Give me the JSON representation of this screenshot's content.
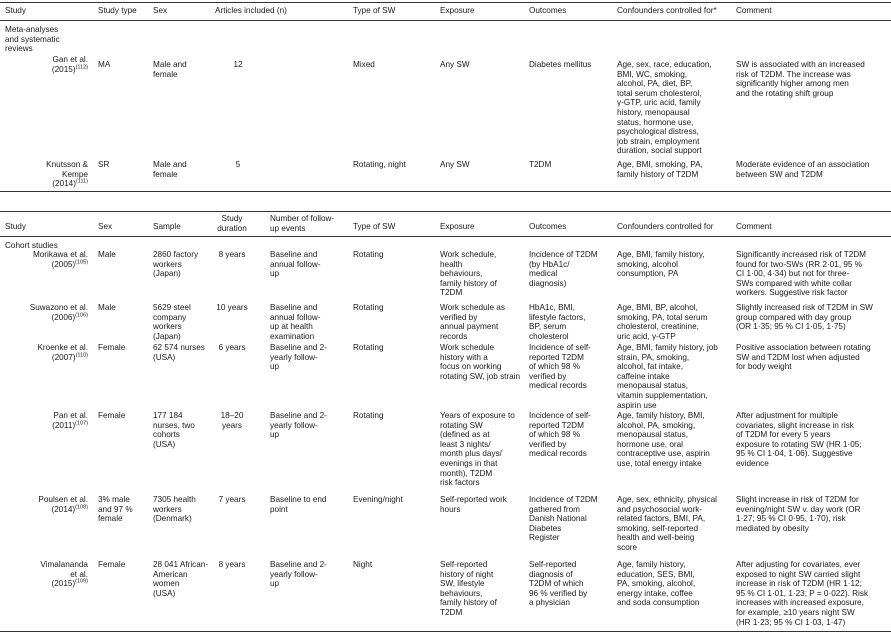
{
  "table1": {
    "headers": [
      "Study",
      "Study type",
      "Sex",
      "Articles included (n)",
      "Type of SW",
      "Exposure",
      "Outcomes",
      "Confounders controlled for*",
      "Comment"
    ],
    "section": "Meta-analyses\nand systematic\nreviews",
    "rows": [
      {
        "study": "Gan et al.\n(2015)",
        "ref": "(112)",
        "type": "MA",
        "sex": "Male and\nfemale",
        "n": "12",
        "sw": "Mixed",
        "exposure": "Any SW",
        "outcomes": "Diabetes mellitus",
        "confounders": "Age, sex, race, education,\nBMI, WC, smoking,\nalcohol, PA, diet, BP,\ntotal serum cholesterol,\nγ-GTP, uric acid, family\nhistory, menopausal\nstatus, hormone use,\npsychological distress,\njob strain, employment\nduration, social support",
        "comment": "SW is associated with an increased\nrisk of T2DM. The increase was\nsignificantly higher among men\nand the rotating shift group"
      },
      {
        "study": "Knutsson &\nKempe\n(2014)",
        "ref": "(111)",
        "type": "SR",
        "sex": "Male and\nfemale",
        "n": "5",
        "sw": "Rotating, night",
        "exposure": "Any SW",
        "outcomes": "T2DM",
        "confounders": "Age, BMI, smoking, PA,\nfamily history of T2DM",
        "comment": "Moderate evidence of an association\nbetween SW and T2DM"
      }
    ]
  },
  "table2": {
    "headers": [
      "Study",
      "Sex",
      "Sample",
      "Study\nduration",
      "Number of follow-\nup events",
      "Type of SW",
      "Exposure",
      "Outcomes",
      "Confounders controlled for",
      "Comment"
    ],
    "section": "Cohort studies",
    "rows": [
      {
        "study": "Morikawa et al.\n(2005)",
        "ref": "(105)",
        "sex": "Male",
        "sample": "2860 factory\nworkers\n(Japan)",
        "duration": "8 years",
        "events": "Baseline and\nannual follow-\nup",
        "sw": "Rotating",
        "exposure": "Work schedule,\nhealth\nbehaviours,\nfamily history of\nT2DM",
        "outcomes": "Incidence of T2DM\n(by HbA1c/\nmedical\ndiagnosis)",
        "confounders": "Age, BMI, family history,\nsmoking, alcohol\nconsumption, PA",
        "comment": "Significantly increased risk of T2DM\nfound for two-SWs (RR 2·01, 95 %\nCI 1·00, 4·34) but not for three-\nSWs compared with white collar\nworkers. Suggestive risk factor"
      },
      {
        "study": "Suwazono et al.\n(2006)",
        "ref": "(106)",
        "sex": "Male",
        "sample": "5629 steel\ncompany\nworkers\n(Japan)",
        "duration": "10 years",
        "events": "Baseline and\nannual follow-\nup at health\nexamination",
        "sw": "Rotating",
        "exposure": "Work schedule as\nverified by\nannual payment\nrecords",
        "outcomes": "HbA1c, BMI,\nlifestyle factors,\nBP, serum\ncholesterol",
        "confounders": "Age, BMI, BP, alcohol,\nsmoking, PA, total serum\ncholesterol, creatinine,\nuric acid, γ-GTP",
        "comment": "Slightly increased risk of T2DM in SW\ngroup compared with day group\n(OR 1·35; 95 % CI 1·05, 1·75)"
      },
      {
        "study": "Kroenke et al.\n(2007)",
        "ref": "(110)",
        "sex": "Female",
        "sample": "62 574 nurses\n(USA)",
        "duration": "6 years",
        "events": "Baseline and 2-\nyearly follow-\nup",
        "sw": "Rotating",
        "exposure": "Work schedule\nhistory with a\nfocus on working\nrotating SW, job strain",
        "outcomes": "Incidence of self-\nreported T2DM\nof which 98 %\nverified by\nmedical records",
        "confounders": "Age, BMI, family history, job\nstrain, PA, smoking,\nalcohol, fat intake,\ncaffeine intake\nmenopausal status,\nvitamin supplementation,\naspirin use",
        "comment": "Positive association between rotating\nSW and T2DM lost when adjusted\nfor body weight"
      },
      {
        "study": "Pan et al.\n(2011)",
        "ref": "(107)",
        "sex": "Female",
        "sample": "177 184\nnurses, two\ncohorts\n(USA)",
        "duration": "18–20\nyears",
        "events": "Baseline and 2-\nyearly follow-\nup",
        "sw": "Rotating",
        "exposure": "Years of exposure to\nrotating SW\n(defined as at\nleast 3 nights/\nmonth plus days/\nevenings in that\nmonth), T2DM\nrisk factors",
        "outcomes": "Incidence of self-\nreported T2DM\nof which 98 %\nverified by\nmedical records",
        "confounders": "Age, family history, BMI,\nalcohol, PA, smoking,\nmenopausal status,\nhormone use, oral\ncontraceptive use, aspirin\nuse, total energy intake",
        "comment": "After adjustment for multiple\ncovariates, slight increase in risk\nof T2DM for every 5 years\nexposure to rotating SW (HR 1·05;\n95 % CI 1·04, 1·06). Suggestive\nevidence"
      },
      {
        "study": "Poulsen et al.\n(2014)",
        "ref": "(108)",
        "sex": "3% male\nand 97 %\nfemale",
        "sample": "7305 health\nworkers\n(Denmark)",
        "duration": "7 years",
        "events": "Baseline to end\npoint",
        "sw": "Evening/night",
        "exposure": "Self-reported work\nhours",
        "outcomes": "Incidence of T2DM\ngathered from\nDanish National\nDiabetes\nRegister",
        "confounders": "Age, sex, ethnicity, physical\nand psychosocial work-\nrelated factors, BMI, PA,\nsmoking, self-reported\nhealth and well-being\nscore",
        "comment": "Slight increase in risk of T2DM for\nevening/night SW v. day work (OR\n1·27; 95 % CI 0·95, 1·70), risk\nmediated by obesity"
      },
      {
        "study": "Vimalananda\net al.\n(2015)",
        "ref": "(109)",
        "sex": "Female",
        "sample": "28 041 African-\nAmerican\nwomen\n(USA)",
        "duration": "8 years",
        "events": "Baseline and 2-\nyearly follow-\nup",
        "sw": "Night",
        "exposure": "Self-reported\nhistory of night\nSW, lifestyle\nbehaviours,\nfamily history of\nT2DM",
        "outcomes": "Self-reported\ndiagnosis of\nT2DM of which\n96 % verified by\na physician",
        "confounders": "Age, family history,\neducation, SES, BMI,\nPA, smoking, alcohol,\nenergy intake, coffee\nand soda consumption",
        "comment": "After adjusting for covariates, ever\nexposed to night SW carried slight\nincrease in risk of T2DM (HR 1·12;\n95 % CI 1·01, 1·23; P = 0·022). Risk\nincreases with increased exposure,\nfor example, ≥10 years night SW\n(HR 1·23; 95 % CI 1·03, 1·47)"
      }
    ]
  }
}
